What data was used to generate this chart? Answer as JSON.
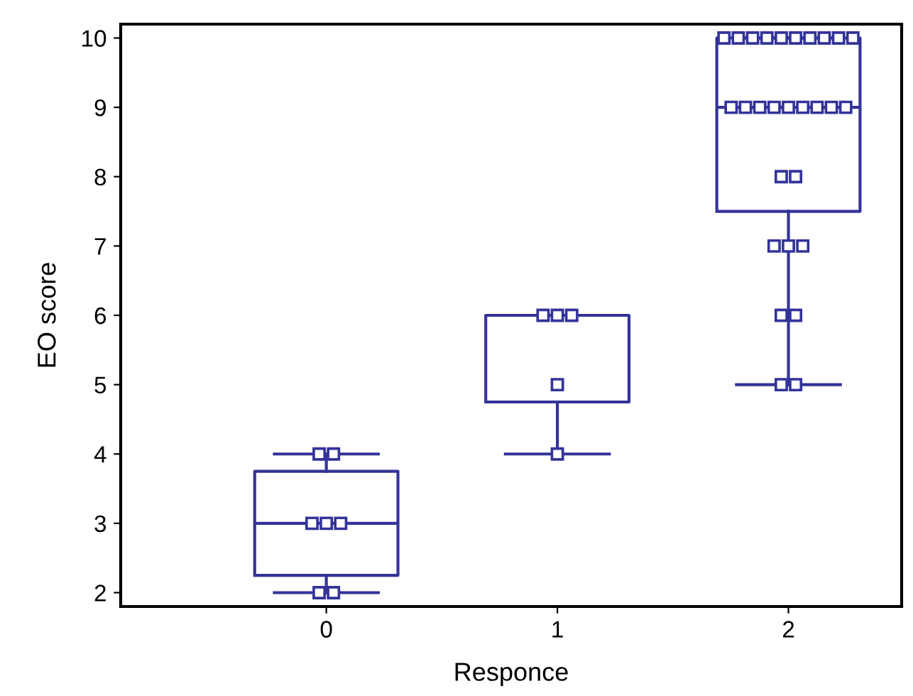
{
  "chart_data": {
    "type": "box",
    "xlabel": "Responce",
    "ylabel": "EO score",
    "categories": [
      "0",
      "1",
      "2"
    ],
    "boxes": [
      {
        "low": 2,
        "q1": 2.25,
        "median": 3,
        "q3": 3.75,
        "high": 4
      },
      {
        "low": 4,
        "q1": 4.75,
        "median": 6,
        "q3": 6,
        "high": 6
      },
      {
        "low": 5,
        "q1": 7.5,
        "median": 9,
        "q3": 10,
        "high": 10
      }
    ],
    "color": "#33339a",
    "ylim": [
      1.8,
      10.2
    ],
    "yticks": [
      2,
      3,
      4,
      5,
      6,
      7,
      8,
      9,
      10
    ],
    "grid": false,
    "legend": false,
    "series": [
      {
        "type": "scatter",
        "color": "#33339a",
        "marker": "square",
        "x": [
          "0",
          "0",
          "0",
          "0",
          "0",
          "0",
          "0",
          "1",
          "1",
          "1",
          "1",
          "1",
          "2",
          "2",
          "2",
          "2",
          "2",
          "2",
          "2",
          "2",
          "2",
          "2",
          "2",
          "2",
          "2",
          "2",
          "2",
          "2",
          "2",
          "2",
          "2",
          "2",
          "2",
          "2",
          "2",
          "2",
          "2",
          "2",
          "2",
          "2"
        ],
        "values": [
          2,
          2,
          3,
          3,
          3,
          4,
          4,
          4,
          5,
          6,
          6,
          6,
          5,
          5,
          6,
          6,
          7,
          7,
          7,
          8,
          8,
          9,
          9,
          9,
          9,
          9,
          9,
          9,
          9,
          9,
          10,
          10,
          10,
          10,
          10,
          10,
          10,
          10,
          10,
          10
        ]
      }
    ]
  }
}
